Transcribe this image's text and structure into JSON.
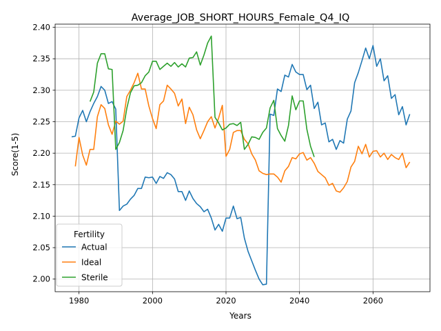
{
  "chart_data": {
    "type": "line",
    "title": "Average_JOB_SHORT_HOURS_Female_Q4_IQ",
    "xlabel": "Years",
    "ylabel": "Score(1-5)",
    "xlim": [
      1973.5,
      2075.5
    ],
    "ylim": [
      1.98,
      2.405
    ],
    "x_ticks": [
      1980,
      2000,
      2020,
      2040,
      2060
    ],
    "y_ticks": [
      2.0,
      2.05,
      2.1,
      2.15,
      2.2,
      2.25,
      2.3,
      2.35,
      2.4
    ],
    "grid": true,
    "legend": {
      "title": "Fertility",
      "position": "bottom-left"
    },
    "series": [
      {
        "name": "Actual",
        "color": "#1f77b4",
        "x": [
          1978,
          1979,
          1980,
          1981,
          1982,
          1983,
          1984,
          1985,
          1986,
          1987,
          1988,
          1989,
          1990,
          1991,
          1992,
          1993,
          1994,
          1995,
          1996,
          1997,
          1998,
          1999,
          2000,
          2001,
          2002,
          2003,
          2004,
          2005,
          2006,
          2007,
          2008,
          2009,
          2010,
          2011,
          2012,
          2013,
          2014,
          2015,
          2016,
          2017,
          2018,
          2019,
          2020,
          2021,
          2022,
          2023,
          2024,
          2025,
          2026,
          2027,
          2028,
          2029,
          2030,
          2031,
          2032,
          2033,
          2034,
          2035,
          2036,
          2037,
          2038,
          2039,
          2040,
          2041,
          2042,
          2043,
          2044,
          2045,
          2046,
          2047,
          2048,
          2049,
          2050,
          2051,
          2052,
          2053,
          2054,
          2055,
          2056,
          2057,
          2058,
          2059,
          2060,
          2061,
          2062,
          2063,
          2064,
          2065,
          2066,
          2067,
          2068,
          2069,
          2070
        ],
        "values": [
          2.226,
          2.227,
          2.256,
          2.268,
          2.25,
          2.266,
          2.279,
          2.29,
          2.306,
          2.3,
          2.279,
          2.282,
          2.27,
          2.109,
          2.116,
          2.119,
          2.127,
          2.133,
          2.144,
          2.144,
          2.162,
          2.161,
          2.162,
          2.152,
          2.163,
          2.16,
          2.169,
          2.166,
          2.159,
          2.139,
          2.139,
          2.125,
          2.14,
          2.128,
          2.12,
          2.115,
          2.107,
          2.111,
          2.097,
          2.078,
          2.087,
          2.076,
          2.097,
          2.097,
          2.116,
          2.096,
          2.098,
          2.065,
          2.044,
          2.029,
          2.014,
          2.0,
          1.991,
          1.992,
          2.262,
          2.26,
          2.302,
          2.298,
          2.324,
          2.321,
          2.341,
          2.329,
          2.325,
          2.325,
          2.301,
          2.308,
          2.271,
          2.281,
          2.245,
          2.248,
          2.218,
          2.222,
          2.206,
          2.22,
          2.216,
          2.254,
          2.267,
          2.312,
          2.328,
          2.347,
          2.367,
          2.35,
          2.371,
          2.338,
          2.35,
          2.315,
          2.323,
          2.287,
          2.293,
          2.261,
          2.274,
          2.245,
          2.262
        ]
      },
      {
        "name": "Ideal",
        "color": "#ff7f0e",
        "x": [
          1979,
          1980,
          1981,
          1982,
          1983,
          1984,
          1985,
          1986,
          1987,
          1988,
          1989,
          1990,
          1991,
          1992,
          1993,
          1994,
          1995,
          1996,
          1997,
          1998,
          1999,
          2000,
          2001,
          2002,
          2003,
          2004,
          2005,
          2006,
          2007,
          2008,
          2009,
          2010,
          2011,
          2012,
          2013,
          2014,
          2015,
          2016,
          2017,
          2018,
          2019,
          2020,
          2021,
          2022,
          2023,
          2024,
          2025,
          2026,
          2027,
          2028,
          2029,
          2030,
          2031,
          2032,
          2033,
          2034,
          2035,
          2036,
          2037,
          2038,
          2039,
          2040,
          2041,
          2042,
          2043,
          2044,
          2045,
          2046,
          2047,
          2048,
          2049,
          2050,
          2051,
          2052,
          2053,
          2054,
          2055,
          2056,
          2057,
          2058,
          2059,
          2060,
          2061,
          2062,
          2063,
          2064,
          2065,
          2066,
          2067,
          2068,
          2069,
          2070
        ],
        "values": [
          2.179,
          2.225,
          2.197,
          2.181,
          2.206,
          2.206,
          2.258,
          2.277,
          2.271,
          2.245,
          2.23,
          2.251,
          2.246,
          2.251,
          2.29,
          2.3,
          2.312,
          2.327,
          2.302,
          2.302,
          2.275,
          2.255,
          2.239,
          2.277,
          2.283,
          2.308,
          2.302,
          2.295,
          2.275,
          2.286,
          2.247,
          2.273,
          2.261,
          2.237,
          2.223,
          2.236,
          2.25,
          2.258,
          2.24,
          2.256,
          2.276,
          2.195,
          2.206,
          2.233,
          2.236,
          2.236,
          2.222,
          2.215,
          2.199,
          2.189,
          2.172,
          2.168,
          2.166,
          2.167,
          2.167,
          2.162,
          2.154,
          2.172,
          2.179,
          2.193,
          2.191,
          2.199,
          2.201,
          2.189,
          2.193,
          2.184,
          2.171,
          2.166,
          2.161,
          2.149,
          2.152,
          2.14,
          2.138,
          2.145,
          2.155,
          2.178,
          2.187,
          2.211,
          2.199,
          2.214,
          2.194,
          2.203,
          2.204,
          2.194,
          2.2,
          2.19,
          2.198,
          2.193,
          2.19,
          2.2,
          2.177,
          2.186
        ]
      },
      {
        "name": "Sterile",
        "color": "#2ca02c",
        "x": [
          1983,
          1984,
          1985,
          1986,
          1987,
          1988,
          1989,
          1990,
          1991,
          1992,
          1993,
          1994,
          1995,
          1996,
          1997,
          1998,
          1999,
          2000,
          2001,
          2002,
          2003,
          2004,
          2005,
          2006,
          2007,
          2008,
          2009,
          2010,
          2011,
          2012,
          2013,
          2014,
          2015,
          2016,
          2017,
          2018,
          2019,
          2020,
          2021,
          2022,
          2023,
          2024,
          2025,
          2026,
          2027,
          2028,
          2029,
          2030,
          2031,
          2032,
          2033,
          2034,
          2035,
          2036,
          2037,
          2038,
          2039,
          2040,
          2041,
          2042,
          2043,
          2044
        ],
        "values": [
          2.282,
          2.297,
          2.343,
          2.358,
          2.358,
          2.334,
          2.333,
          2.206,
          2.217,
          2.236,
          2.271,
          2.296,
          2.307,
          2.308,
          2.312,
          2.323,
          2.329,
          2.346,
          2.346,
          2.333,
          2.338,
          2.343,
          2.338,
          2.344,
          2.337,
          2.342,
          2.337,
          2.351,
          2.352,
          2.361,
          2.34,
          2.356,
          2.375,
          2.386,
          2.257,
          2.248,
          2.237,
          2.24,
          2.246,
          2.247,
          2.244,
          2.249,
          2.206,
          2.214,
          2.226,
          2.225,
          2.222,
          2.233,
          2.24,
          2.272,
          2.284,
          2.239,
          2.228,
          2.219,
          2.244,
          2.291,
          2.269,
          2.283,
          2.283,
          2.238,
          2.211,
          2.194
        ]
      }
    ]
  }
}
